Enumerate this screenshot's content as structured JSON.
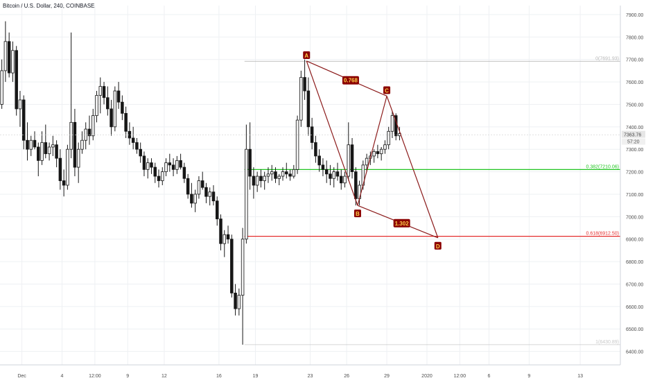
{
  "header": {
    "title": "Bitcoin / U.S. Dollar, 240, COINBASE"
  },
  "colors": {
    "up": "#f3f3f3",
    "down": "#161616",
    "grid": "#eef0f3",
    "pattern": "#8b1a1a",
    "label_bg": "#8b0000",
    "label_text": "#ffd24d",
    "fib_0": "#b8b8b8",
    "fib_382": "#21c521",
    "fib_618": "#e42d2d",
    "fib_1": "#c8c8c8"
  },
  "chart_data": {
    "type": "candlestick",
    "y_axis": {
      "range": [
        6340,
        7940
      ],
      "ticks": [
        6400,
        6500,
        6600,
        6700,
        6800,
        6900,
        7000,
        7100,
        7200,
        7300,
        7400,
        7500,
        7600,
        7700,
        7800,
        7900
      ],
      "labels": [
        "6400.00",
        "6500.00",
        "6600.00",
        "6700.00",
        "6800.00",
        "6900.00",
        "7000.00",
        "7100.00",
        "7200.00",
        "7300.00",
        "7400.00",
        "7500.00",
        "7600.00",
        "7700.00",
        "7800.00",
        "7900.00"
      ]
    },
    "x_axis": {
      "range": [
        0,
        170
      ],
      "ticks": [
        {
          "x": 6,
          "label": "Dec"
        },
        {
          "x": 17,
          "label": "4"
        },
        {
          "x": 26,
          "label": "12:00"
        },
        {
          "x": 35,
          "label": "9"
        },
        {
          "x": 45,
          "label": "12"
        },
        {
          "x": 60,
          "label": "16"
        },
        {
          "x": 70,
          "label": "19"
        },
        {
          "x": 85,
          "label": "23"
        },
        {
          "x": 95,
          "label": "26"
        },
        {
          "x": 106,
          "label": "29"
        },
        {
          "x": 117,
          "label": "2020"
        },
        {
          "x": 126,
          "label": "12:00"
        },
        {
          "x": 134,
          "label": "6"
        },
        {
          "x": 145,
          "label": "9"
        },
        {
          "x": 159,
          "label": "13"
        }
      ]
    },
    "current_price": {
      "value": 7363.76,
      "label": "7363.76",
      "timer": "57:20"
    },
    "candles": [
      [
        7500,
        7700,
        7480,
        7650
      ],
      [
        7650,
        7870,
        7600,
        7780
      ],
      [
        7780,
        7820,
        7620,
        7640
      ],
      [
        7640,
        7780,
        7600,
        7740
      ],
      [
        7740,
        7760,
        7450,
        7480
      ],
      [
        7480,
        7560,
        7400,
        7520
      ],
      [
        7520,
        7540,
        7300,
        7340
      ],
      [
        7340,
        7420,
        7250,
        7300
      ],
      [
        7300,
        7360,
        7270,
        7340
      ],
      [
        7340,
        7380,
        7300,
        7310
      ],
      [
        7310,
        7330,
        7180,
        7250
      ],
      [
        7250,
        7380,
        7230,
        7330
      ],
      [
        7330,
        7410,
        7260,
        7280
      ],
      [
        7280,
        7330,
        7250,
        7310
      ],
      [
        7310,
        7360,
        7270,
        7320
      ],
      [
        7320,
        7340,
        7220,
        7260
      ],
      [
        7260,
        7300,
        7120,
        7160
      ],
      [
        7160,
        7210,
        7090,
        7140
      ],
      [
        7140,
        7320,
        7120,
        7300
      ],
      [
        7300,
        7820,
        7260,
        7420
      ],
      [
        7420,
        7480,
        7180,
        7220
      ],
      [
        7220,
        7330,
        7150,
        7300
      ],
      [
        7300,
        7380,
        7280,
        7340
      ],
      [
        7340,
        7420,
        7300,
        7390
      ],
      [
        7390,
        7450,
        7320,
        7360
      ],
      [
        7360,
        7480,
        7340,
        7450
      ],
      [
        7450,
        7560,
        7420,
        7540
      ],
      [
        7540,
        7620,
        7460,
        7580
      ],
      [
        7580,
        7600,
        7500,
        7530
      ],
      [
        7530,
        7580,
        7450,
        7480
      ],
      [
        7480,
        7520,
        7360,
        7400
      ],
      [
        7400,
        7580,
        7380,
        7560
      ],
      [
        7560,
        7600,
        7480,
        7510
      ],
      [
        7510,
        7540,
        7430,
        7460
      ],
      [
        7460,
        7490,
        7350,
        7380
      ],
      [
        7380,
        7420,
        7320,
        7350
      ],
      [
        7350,
        7400,
        7300,
        7330
      ],
      [
        7330,
        7350,
        7280,
        7300
      ],
      [
        7300,
        7330,
        7240,
        7270
      ],
      [
        7270,
        7290,
        7180,
        7210
      ],
      [
        7210,
        7260,
        7170,
        7240
      ],
      [
        7240,
        7260,
        7190,
        7220
      ],
      [
        7220,
        7240,
        7150,
        7180
      ],
      [
        7180,
        7210,
        7130,
        7160
      ],
      [
        7160,
        7220,
        7140,
        7200
      ],
      [
        7200,
        7260,
        7180,
        7240
      ],
      [
        7240,
        7280,
        7200,
        7230
      ],
      [
        7230,
        7260,
        7180,
        7210
      ],
      [
        7210,
        7270,
        7190,
        7250
      ],
      [
        7250,
        7280,
        7210,
        7220
      ],
      [
        7220,
        7240,
        7150,
        7170
      ],
      [
        7170,
        7190,
        7080,
        7100
      ],
      [
        7100,
        7150,
        7040,
        7060
      ],
      [
        7060,
        7120,
        7020,
        7100
      ],
      [
        7100,
        7180,
        7080,
        7160
      ],
      [
        7160,
        7200,
        7120,
        7130
      ],
      [
        7130,
        7150,
        7060,
        7090
      ],
      [
        7090,
        7130,
        7050,
        7110
      ],
      [
        7110,
        7140,
        7050,
        7070
      ],
      [
        7070,
        7090,
        6960,
        6990
      ],
      [
        6990,
        7010,
        6850,
        6880
      ],
      [
        6880,
        6940,
        6820,
        6920
      ],
      [
        6920,
        6960,
        6880,
        6900
      ],
      [
        6900,
        6920,
        6640,
        6660
      ],
      [
        6660,
        6700,
        6560,
        6590
      ],
      [
        6590,
        6680,
        6560,
        6650
      ],
      [
        6650,
        6950,
        6430,
        6900
      ],
      [
        6900,
        7410,
        6880,
        7300
      ],
      [
        7300,
        7420,
        7120,
        7180
      ],
      [
        7180,
        7220,
        7080,
        7140
      ],
      [
        7140,
        7200,
        7110,
        7180
      ],
      [
        7180,
        7210,
        7130,
        7160
      ],
      [
        7160,
        7200,
        7120,
        7180
      ],
      [
        7180,
        7220,
        7150,
        7190
      ],
      [
        7190,
        7230,
        7160,
        7200
      ],
      [
        7200,
        7220,
        7150,
        7170
      ],
      [
        7170,
        7190,
        7140,
        7180
      ],
      [
        7180,
        7220,
        7160,
        7200
      ],
      [
        7200,
        7240,
        7170,
        7190
      ],
      [
        7190,
        7210,
        7160,
        7180
      ],
      [
        7180,
        7230,
        7170,
        7210
      ],
      [
        7210,
        7450,
        7190,
        7430
      ],
      [
        7430,
        7650,
        7400,
        7620
      ],
      [
        7620,
        7700,
        7520,
        7560
      ],
      [
        7560,
        7620,
        7360,
        7400
      ],
      [
        7400,
        7440,
        7300,
        7330
      ],
      [
        7330,
        7360,
        7240,
        7270
      ],
      [
        7270,
        7300,
        7200,
        7230
      ],
      [
        7230,
        7260,
        7180,
        7210
      ],
      [
        7210,
        7250,
        7150,
        7190
      ],
      [
        7190,
        7230,
        7140,
        7170
      ],
      [
        7170,
        7220,
        7130,
        7200
      ],
      [
        7200,
        7240,
        7160,
        7180
      ],
      [
        7180,
        7210,
        7120,
        7150
      ],
      [
        7150,
        7200,
        7130,
        7180
      ],
      [
        7180,
        7420,
        7160,
        7320
      ],
      [
        7320,
        7350,
        7170,
        7200
      ],
      [
        7200,
        7220,
        7050,
        7080
      ],
      [
        7080,
        7160,
        7050,
        7140
      ],
      [
        7140,
        7250,
        7120,
        7230
      ],
      [
        7230,
        7280,
        7200,
        7260
      ],
      [
        7260,
        7290,
        7230,
        7270
      ],
      [
        7270,
        7300,
        7240,
        7290
      ],
      [
        7290,
        7320,
        7260,
        7280
      ],
      [
        7280,
        7310,
        7250,
        7300
      ],
      [
        7300,
        7340,
        7280,
        7320
      ],
      [
        7320,
        7400,
        7300,
        7380
      ],
      [
        7380,
        7470,
        7350,
        7450
      ],
      [
        7450,
        7460,
        7340,
        7360
      ],
      [
        7360,
        7400,
        7340,
        7370
      ]
    ],
    "harmonic": {
      "points": [
        {
          "name": "A",
          "x": 84,
          "y": 7693
        },
        {
          "name": "B",
          "x": 98,
          "y": 7050
        },
        {
          "name": "C",
          "x": 106,
          "y": 7537
        },
        {
          "name": "D",
          "x": 120,
          "y": 6906
        }
      ],
      "ratios": [
        {
          "label": "0.768",
          "from": "A",
          "to": "C",
          "pos": 0.55
        },
        {
          "label": "1.302",
          "from": "B",
          "to": "D",
          "pos": 0.55
        }
      ]
    },
    "fib_levels": [
      {
        "label": "0(7691.93)",
        "value": 7692,
        "color": "#b8b8b8"
      },
      {
        "label": "0.382(7210.06)",
        "value": 7210,
        "color": "#21c521"
      },
      {
        "label": "0.618(6912.50)",
        "value": 6912.5,
        "color": "#e42d2d"
      },
      {
        "label": "1(6430.89)",
        "value": 6430,
        "color": "#c8c8c8"
      }
    ],
    "fib_start_x": 67
  }
}
